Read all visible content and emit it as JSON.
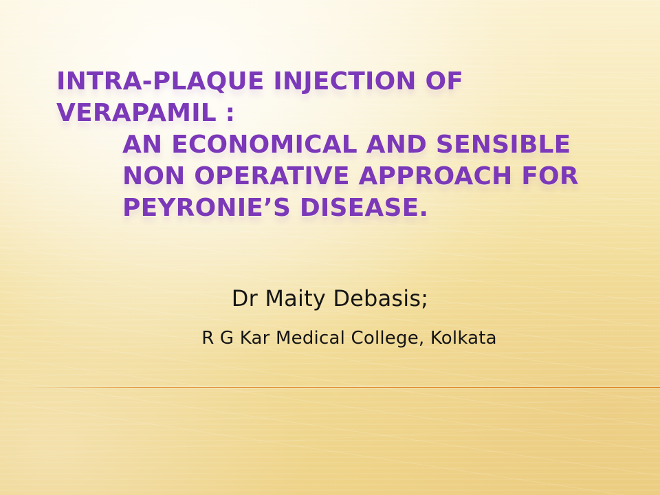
{
  "slide": {
    "title_lines": [
      "Intra-plaque injection of",
      "verapamil  :",
      "An economical and sensible",
      "non operative approach for",
      "Peyronie’s disease."
    ],
    "author": "Dr Maity  Debasis;",
    "affiliation": "R G Kar Medical College, Kolkata"
  },
  "colors": {
    "title": "#7b38b8",
    "body_text": "#151515",
    "accent_line": "#dc7c18",
    "background": "#f6e7a9"
  }
}
